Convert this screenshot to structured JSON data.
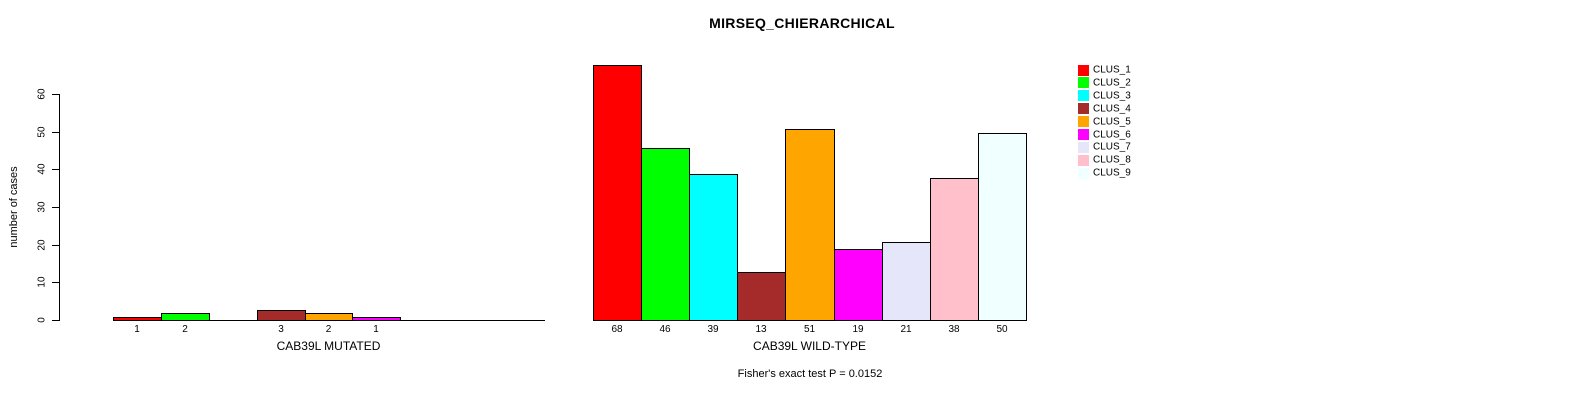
{
  "title": "MIRSEQ_CHIERARCHICAL",
  "y_axis": {
    "label": "number of cases",
    "ticks": [
      0,
      10,
      20,
      30,
      40,
      50,
      60
    ]
  },
  "annotation": "Fisher's exact test P = 0.0152",
  "legend": {
    "items": [
      {
        "label": "CLUS_1",
        "color": "#FF0000"
      },
      {
        "label": "CLUS_2",
        "color": "#00FF00"
      },
      {
        "label": "CLUS_3",
        "color": "#00FFFF"
      },
      {
        "label": "CLUS_4",
        "color": "#A52A2A"
      },
      {
        "label": "CLUS_5",
        "color": "#FFA500"
      },
      {
        "label": "CLUS_6",
        "color": "#FF00FF"
      },
      {
        "label": "CLUS_7",
        "color": "#E6E6FA"
      },
      {
        "label": "CLUS_8",
        "color": "#FFC0CB"
      },
      {
        "label": "CLUS_9",
        "color": "#F0FFFF"
      }
    ]
  },
  "chart_data": {
    "type": "bar",
    "title": "MIRSEQ_CHIERARCHICAL",
    "ylabel": "number of cases",
    "ylim": [
      0,
      68
    ],
    "yticks": [
      0,
      10,
      20,
      30,
      40,
      50,
      60
    ],
    "grid": false,
    "legend_position": "right-top",
    "series_labels": [
      "CLUS_1",
      "CLUS_2",
      "CLUS_3",
      "CLUS_4",
      "CLUS_5",
      "CLUS_6",
      "CLUS_7",
      "CLUS_8",
      "CLUS_9"
    ],
    "colors": [
      "#FF0000",
      "#00FF00",
      "#00FFFF",
      "#A52A2A",
      "#FFA500",
      "#FF00FF",
      "#E6E6FA",
      "#FFC0CB",
      "#F0FFFF"
    ],
    "groups": [
      {
        "label": "CAB39L MUTATED",
        "values": [
          1,
          2,
          0,
          3,
          2,
          1,
          0,
          0,
          0
        ]
      },
      {
        "label": "CAB39L WILD-TYPE",
        "values": [
          68,
          46,
          39,
          13,
          51,
          19,
          21,
          38,
          50
        ]
      }
    ],
    "annotation": "Fisher's exact test P = 0.0152"
  }
}
